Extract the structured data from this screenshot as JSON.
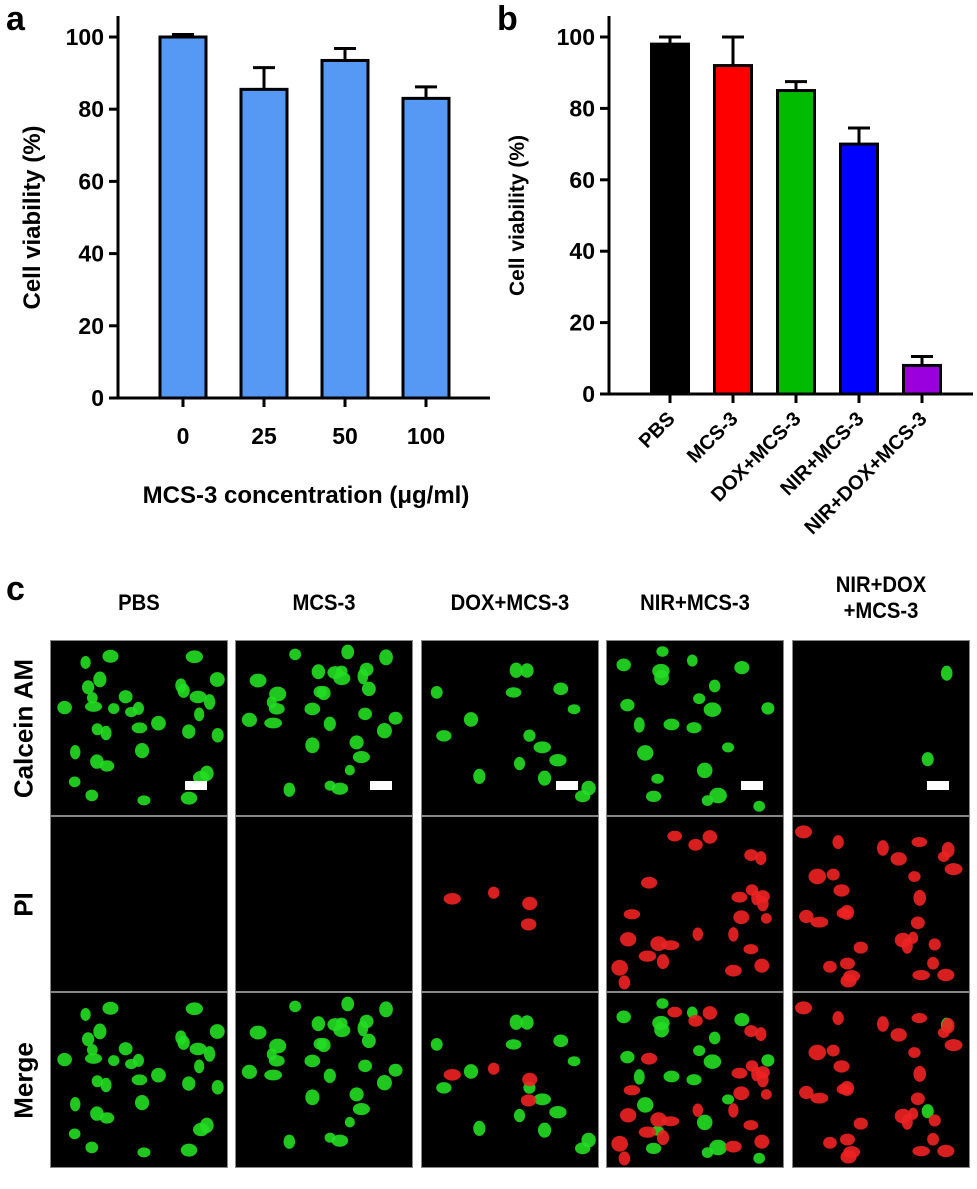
{
  "figure": {
    "panels": {
      "a": {
        "letter": "a"
      },
      "b": {
        "letter": "b"
      },
      "c": {
        "letter": "c"
      }
    }
  },
  "chart_data": [
    {
      "panel": "a",
      "type": "bar",
      "title": "",
      "categories": [
        "0",
        "25",
        "50",
        "100"
      ],
      "values": [
        100,
        85.5,
        93.5,
        83
      ],
      "errors": [
        0.7,
        6,
        3.3,
        3.2
      ],
      "xlabel": "MCS-3 concentration (μg/ml)",
      "ylabel": "Cell viability (%)",
      "ylim": [
        0,
        100
      ],
      "yticks": [
        "0",
        "20",
        "40",
        "60",
        "80",
        "100"
      ],
      "bar_color": "#5599f5",
      "grid": false,
      "legend": null
    },
    {
      "panel": "b",
      "type": "bar",
      "title": "",
      "categories": [
        "PBS",
        "MCS-3",
        "DOX+MCS-3",
        "NIR+MCS-3",
        "NIR+DOX+MCS-3"
      ],
      "values": [
        98,
        92,
        85,
        70,
        8
      ],
      "errors": [
        2,
        8,
        2.5,
        4.5,
        2.5
      ],
      "colors": [
        "#000000",
        "#ff0000",
        "#00bb00",
        "#0000ff",
        "#9900dd"
      ],
      "xlabel": "",
      "ylabel": "Cell viability (%)",
      "ylim": [
        0,
        100
      ],
      "yticks": [
        "0",
        "20",
        "40",
        "60",
        "80",
        "100"
      ],
      "grid": false,
      "legend": null
    }
  ],
  "micrographs": {
    "column_headers": [
      "PBS",
      "MCS-3",
      "DOX+MCS-3",
      "NIR+MCS-3",
      "NIR+DOX\n+MCS-3"
    ],
    "column_header_lines": [
      [
        "PBS"
      ],
      [
        "MCS-3"
      ],
      [
        "DOX+MCS-3"
      ],
      [
        "NIR+MCS-3"
      ],
      [
        "NIR+DOX",
        "+MCS-3"
      ]
    ],
    "row_headers": [
      "Calcein AM",
      "PI",
      "Merge"
    ],
    "stain_colors": {
      "live": "#22dd22",
      "dead": "#ee2222"
    }
  }
}
